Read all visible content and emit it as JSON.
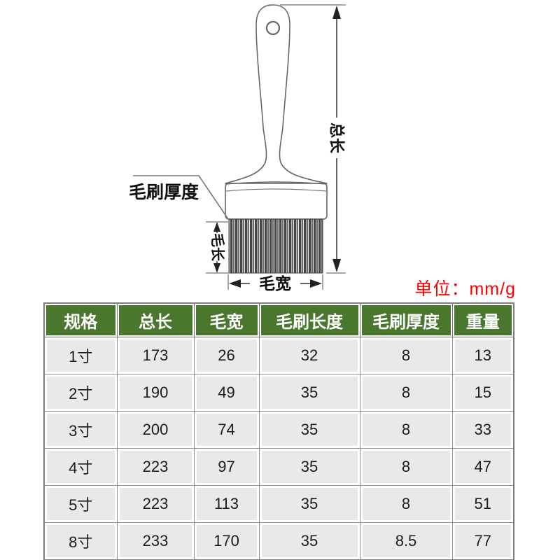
{
  "unit_note": {
    "text": "单位：mm/g",
    "color": "#fe0000"
  },
  "diagram": {
    "labels": {
      "total_length": "总长",
      "brush_thickness": "毛刷厚度",
      "bristle_length": "毛长",
      "bristle_width": "毛宽"
    }
  },
  "table": {
    "header_bg": "#49772e",
    "cell_bg": "#e9e9e7",
    "headers": [
      "规格",
      "总长",
      "毛宽",
      "毛刷长度",
      "毛刷厚度",
      "重量"
    ],
    "rows": [
      [
        "1寸",
        "173",
        "26",
        "32",
        "8",
        "13"
      ],
      [
        "2寸",
        "190",
        "49",
        "35",
        "8",
        "15"
      ],
      [
        "3寸",
        "200",
        "74",
        "35",
        "8",
        "33"
      ],
      [
        "4寸",
        "223",
        "97",
        "35",
        "8",
        "47"
      ],
      [
        "5寸",
        "223",
        "113",
        "35",
        "8",
        "51"
      ],
      [
        "8寸",
        "233",
        "170",
        "35",
        "8.5",
        "77"
      ]
    ]
  }
}
